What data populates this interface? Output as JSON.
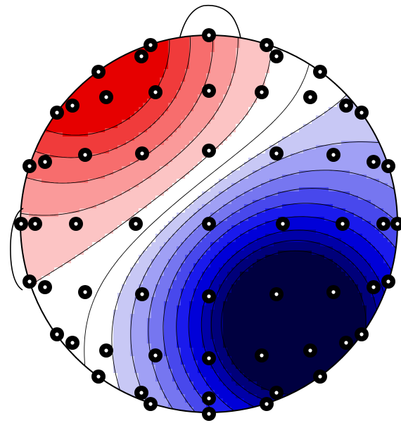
{
  "figure": {
    "colors": {
      "background": "#ffffff",
      "outline": "#000000",
      "electrode": "#000000",
      "electrode_center": "#ffffff",
      "palette": [
        "#e60000",
        "#f03b3b",
        "#f76d6d",
        "#fa9a9a",
        "#fcc4c4",
        "#ffffff",
        "#ffffff",
        "#c8c8f5",
        "#a0a0f5",
        "#7676f0",
        "#4848ec",
        "#1a1aec",
        "#0000d8",
        "#0000a8",
        "#00007a",
        "#000040"
      ]
    },
    "contour_levels": [
      -0.95,
      -0.85,
      -0.75,
      -0.62,
      -0.5,
      -0.38,
      -0.26,
      -0.14,
      -0.04,
      0.06,
      0.2,
      0.38,
      0.55,
      0.72,
      0.88
    ],
    "electrode_count": 64,
    "icons": {
      "head_outline": "head-outline",
      "nose": "nose-icon",
      "ears": "ear-icon",
      "electrodes": "electrode-marker"
    }
  }
}
